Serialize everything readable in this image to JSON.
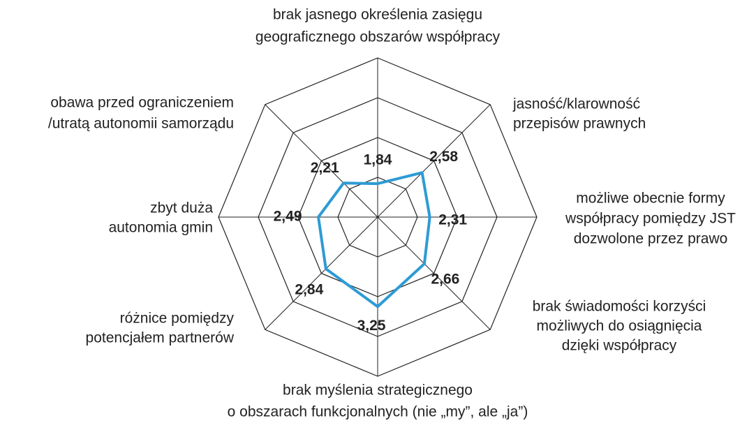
{
  "chart_data": {
    "type": "radar",
    "categories": [
      [
        "brak jasnego określenia zasięgu",
        "geograficznego obszarów współpracy"
      ],
      [
        "jasność/klarowność",
        "przepisów prawnych"
      ],
      [
        "możliwe obecnie formy",
        "współpracy pomiędzy JST",
        "dozwolone przez prawo"
      ],
      [
        "brak świadomości korzyści",
        "możliwych do osiągnięcia",
        "dzięki współpracy"
      ],
      [
        "brak myślenia strategicznego",
        "o obszarach funkcjonalnych (nie „my”, ale „ja”)"
      ],
      [
        "różnice pomiędzy",
        "potencjałem partnerów"
      ],
      [
        "zbyt duża",
        "autonomia gmin"
      ],
      [
        "obawa przed ograniczeniem",
        "/utratą autonomii samorządu"
      ]
    ],
    "values": [
      1.84,
      2.58,
      2.31,
      2.66,
      3.25,
      2.84,
      2.49,
      2.21
    ],
    "value_labels": [
      "1,84",
      "2,58",
      "2,31",
      "2,66",
      "3,25",
      "2,84",
      "2,49",
      "2,21"
    ],
    "color": "#2e9bd4",
    "ylim": [
      1,
      5
    ],
    "yticks": [
      1,
      2,
      3,
      4,
      5
    ],
    "grid": true
  }
}
